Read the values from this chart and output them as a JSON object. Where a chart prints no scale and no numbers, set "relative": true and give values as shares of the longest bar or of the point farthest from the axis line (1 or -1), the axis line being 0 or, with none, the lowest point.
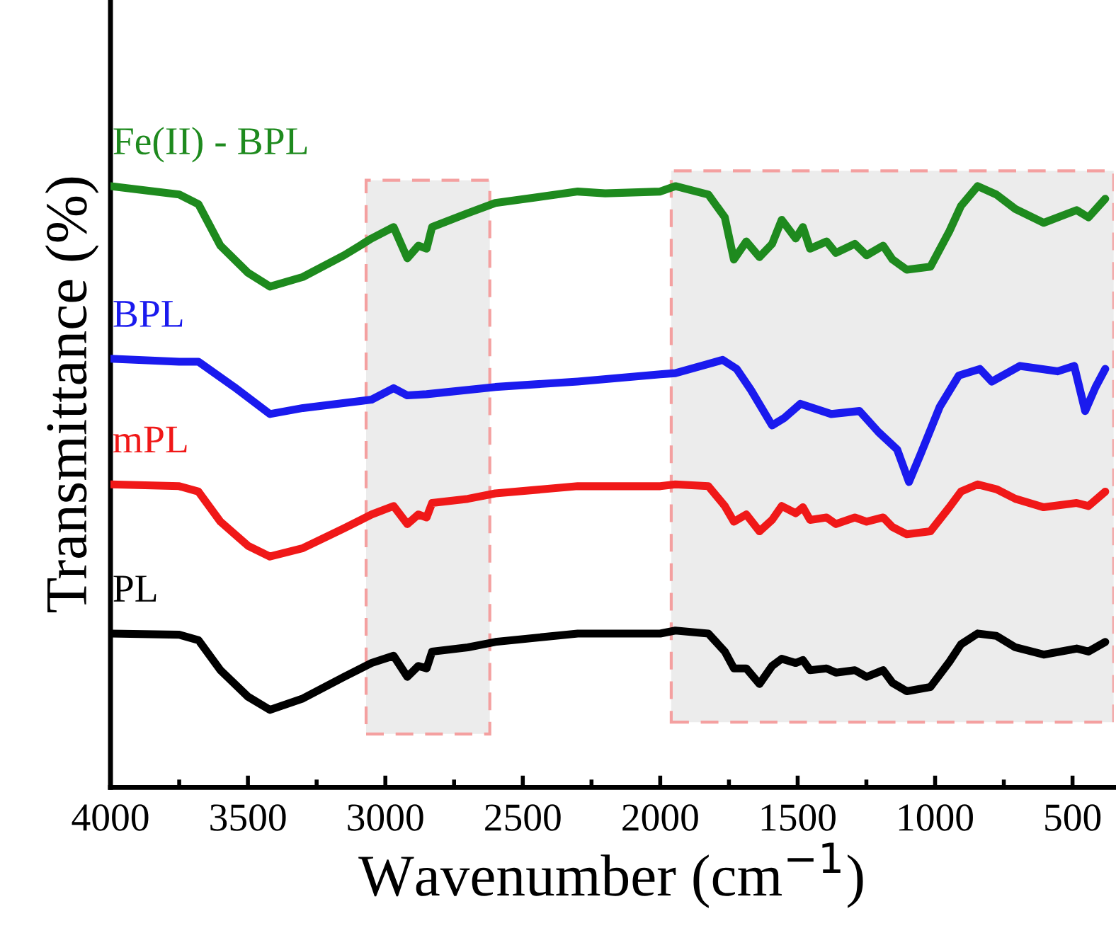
{
  "chart_data": {
    "type": "line",
    "xlabel": "Wavenumber (cm$^{−1}$)",
    "ylabel": "Transmittance (%)",
    "relative": true,
    "xlim": [
      4000,
      350
    ],
    "xticks": [
      4000,
      3500,
      3000,
      2500,
      2000,
      1500,
      1000,
      500
    ],
    "grid": false,
    "legend": false,
    "line_style": "solid",
    "marker": "none",
    "bands": [
      {
        "axis": "x",
        "from": 3070,
        "to": 2620,
        "color": "#ececec"
      },
      {
        "axis": "x",
        "from": 1960,
        "to": 350,
        "color": "#ececec"
      }
    ],
    "series": [
      {
        "name": "Fe(II) - BPL",
        "color": "#1e8a1e",
        "x": [
          4000,
          3750,
          3680,
          3600,
          3500,
          3420,
          3300,
          3150,
          3050,
          2970,
          2920,
          2880,
          2850,
          2830,
          2700,
          2600,
          2300,
          2200,
          2000,
          1945,
          1825,
          1765,
          1732,
          1687,
          1639,
          1593,
          1558,
          1507,
          1481,
          1455,
          1395,
          1361,
          1292,
          1249,
          1189,
          1155,
          1103,
          1017,
          948,
          906,
          845,
          777,
          708,
          605,
          485,
          442,
          381
        ],
        "values": [
          1.0,
          0.986,
          0.97,
          0.901,
          0.856,
          0.833,
          0.849,
          0.885,
          0.913,
          0.932,
          0.88,
          0.901,
          0.896,
          0.932,
          0.955,
          0.972,
          0.991,
          0.988,
          0.991,
          1.0,
          0.986,
          0.948,
          0.878,
          0.908,
          0.882,
          0.904,
          0.944,
          0.913,
          0.932,
          0.896,
          0.908,
          0.889,
          0.904,
          0.885,
          0.901,
          0.878,
          0.861,
          0.866,
          0.925,
          0.967,
          1.0,
          0.986,
          0.962,
          0.939,
          0.96,
          0.948,
          0.979
        ]
      },
      {
        "name": "BPL",
        "color": "#1a1aee",
        "x": [
          4000,
          3750,
          3680,
          3550,
          3420,
          3300,
          3050,
          2970,
          2920,
          2850,
          2600,
          2300,
          2000,
          1945,
          1773,
          1722,
          1670,
          1593,
          1550,
          1490,
          1378,
          1275,
          1206,
          1138,
          1095,
          1052,
          983,
          914,
          837,
          794,
          691,
          554,
          494,
          454,
          416,
          381
        ],
        "values": [
          0.713,
          0.708,
          0.708,
          0.666,
          0.621,
          0.631,
          0.645,
          0.664,
          0.652,
          0.654,
          0.666,
          0.675,
          0.687,
          0.689,
          0.711,
          0.696,
          0.661,
          0.602,
          0.614,
          0.638,
          0.621,
          0.626,
          0.591,
          0.562,
          0.508,
          0.555,
          0.633,
          0.685,
          0.696,
          0.675,
          0.701,
          0.692,
          0.701,
          0.626,
          0.666,
          0.696
        ]
      },
      {
        "name": "mPL",
        "color": "#f01818",
        "x": [
          4000,
          3750,
          3680,
          3600,
          3500,
          3420,
          3300,
          3150,
          3050,
          2970,
          2920,
          2880,
          2850,
          2830,
          2700,
          2600,
          2300,
          2000,
          1945,
          1825,
          1765,
          1732,
          1687,
          1639,
          1593,
          1558,
          1507,
          1481,
          1455,
          1395,
          1361,
          1292,
          1249,
          1189,
          1155,
          1103,
          1017,
          948,
          906,
          845,
          777,
          708,
          605,
          485,
          442,
          381
        ],
        "values": [
          0.504,
          0.501,
          0.492,
          0.442,
          0.402,
          0.384,
          0.398,
          0.431,
          0.454,
          0.468,
          0.438,
          0.454,
          0.449,
          0.473,
          0.48,
          0.489,
          0.501,
          0.501,
          0.504,
          0.501,
          0.468,
          0.442,
          0.454,
          0.426,
          0.445,
          0.468,
          0.456,
          0.466,
          0.445,
          0.449,
          0.438,
          0.449,
          0.442,
          0.449,
          0.433,
          0.421,
          0.426,
          0.466,
          0.492,
          0.504,
          0.496,
          0.48,
          0.466,
          0.473,
          0.468,
          0.492
        ]
      },
      {
        "name": "PL",
        "color": "#000000",
        "x": [
          4000,
          3750,
          3680,
          3600,
          3500,
          3420,
          3300,
          3150,
          3050,
          2970,
          2920,
          2880,
          2850,
          2830,
          2700,
          2600,
          2300,
          2000,
          1945,
          1825,
          1765,
          1732,
          1687,
          1639,
          1593,
          1558,
          1507,
          1481,
          1455,
          1395,
          1361,
          1292,
          1249,
          1189,
          1155,
          1103,
          1017,
          948,
          906,
          845,
          777,
          708,
          605,
          485,
          442,
          381
        ],
        "values": [
          0.256,
          0.254,
          0.245,
          0.195,
          0.151,
          0.129,
          0.148,
          0.184,
          0.207,
          0.219,
          0.184,
          0.202,
          0.198,
          0.226,
          0.233,
          0.242,
          0.256,
          0.256,
          0.261,
          0.256,
          0.226,
          0.198,
          0.198,
          0.172,
          0.202,
          0.214,
          0.207,
          0.212,
          0.195,
          0.198,
          0.191,
          0.195,
          0.184,
          0.195,
          0.174,
          0.16,
          0.167,
          0.209,
          0.238,
          0.256,
          0.252,
          0.233,
          0.221,
          0.231,
          0.226,
          0.242
        ]
      }
    ]
  }
}
